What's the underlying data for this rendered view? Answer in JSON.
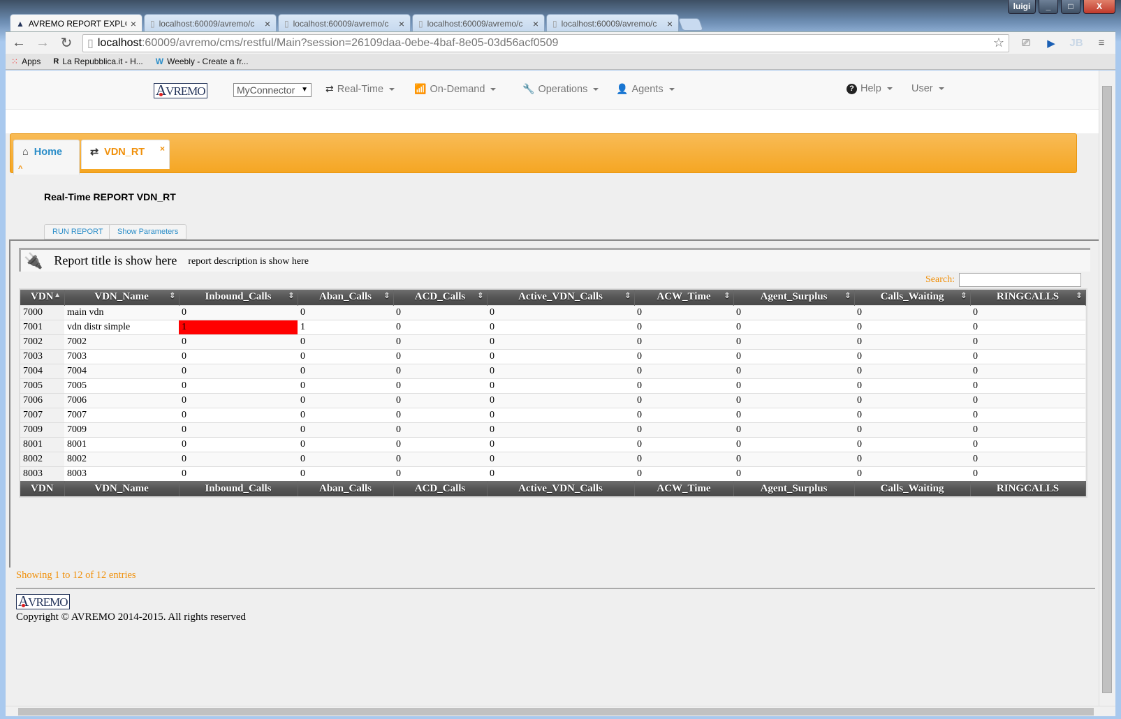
{
  "window": {
    "user": "luigi",
    "min": "_",
    "max": "□",
    "close": "X"
  },
  "browser_tabs": [
    {
      "title": "AVREMO REPORT EXPLORER",
      "active": true
    },
    {
      "title": "localhost:60009/avremo/c"
    },
    {
      "title": "localhost:60009/avremo/c"
    },
    {
      "title": "localhost:60009/avremo/c"
    },
    {
      "title": "localhost:60009/avremo/c"
    }
  ],
  "address": {
    "host": "localhost",
    "rest": ":60009/avremo/cms/restful/Main?session=26109daa-0ebe-4baf-8e05-03d56acf0509"
  },
  "bookmarks": [
    {
      "label": "Apps"
    },
    {
      "label": "La Repubblica.it - H..."
    },
    {
      "label": "Weebly - Create a fr..."
    }
  ],
  "navbar": {
    "logo": "AVREMO",
    "connector": "MyConnector",
    "menus": [
      {
        "label": "Real-Time",
        "icon": "refresh-icon"
      },
      {
        "label": "On-Demand",
        "icon": "chart-icon"
      },
      {
        "label": "Operations",
        "icon": "wrench-icon"
      },
      {
        "label": "Agents",
        "icon": "user-icon"
      }
    ],
    "help": "Help",
    "user": "User"
  },
  "app_tabs": [
    {
      "label": "Home",
      "icon": "home-icon"
    },
    {
      "label": "VDN_RT",
      "icon": "refresh-icon",
      "close": "×"
    }
  ],
  "report": {
    "heading": "Real-Time REPORT VDN_RT",
    "run_button": "RUN REPORT",
    "params_button": "Show Parameters",
    "title": "Report title is show here",
    "description": "report description is show here",
    "search_label": "Search:",
    "search_value": ""
  },
  "colors": {
    "accent": "#f5a623",
    "highlight": "#ff0000",
    "link": "#2a8dc8"
  },
  "table": {
    "columns": [
      "VDN",
      "VDN_Name",
      "Inbound_Calls",
      "Aban_Calls",
      "ACD_Calls",
      "Active_VDN_Calls",
      "ACW_Time",
      "Agent_Surplus",
      "Calls_Waiting",
      "RINGCALLS"
    ],
    "rows": [
      [
        "7000",
        "main vdn",
        "0",
        "0",
        "0",
        "0",
        "0",
        "0",
        "0",
        "0"
      ],
      [
        "7001",
        "vdn distr simple",
        "1",
        "1",
        "0",
        "0",
        "0",
        "0",
        "0",
        "0"
      ],
      [
        "7002",
        "7002",
        "0",
        "0",
        "0",
        "0",
        "0",
        "0",
        "0",
        "0"
      ],
      [
        "7003",
        "7003",
        "0",
        "0",
        "0",
        "0",
        "0",
        "0",
        "0",
        "0"
      ],
      [
        "7004",
        "7004",
        "0",
        "0",
        "0",
        "0",
        "0",
        "0",
        "0",
        "0"
      ],
      [
        "7005",
        "7005",
        "0",
        "0",
        "0",
        "0",
        "0",
        "0",
        "0",
        "0"
      ],
      [
        "7006",
        "7006",
        "0",
        "0",
        "0",
        "0",
        "0",
        "0",
        "0",
        "0"
      ],
      [
        "7007",
        "7007",
        "0",
        "0",
        "0",
        "0",
        "0",
        "0",
        "0",
        "0"
      ],
      [
        "7009",
        "7009",
        "0",
        "0",
        "0",
        "0",
        "0",
        "0",
        "0",
        "0"
      ],
      [
        "8001",
        "8001",
        "0",
        "0",
        "0",
        "0",
        "0",
        "0",
        "0",
        "0"
      ],
      [
        "8002",
        "8002",
        "0",
        "0",
        "0",
        "0",
        "0",
        "0",
        "0",
        "0"
      ],
      [
        "8003",
        "8003",
        "0",
        "0",
        "0",
        "0",
        "0",
        "0",
        "0",
        "0"
      ]
    ],
    "highlighted_cell": {
      "row": 1,
      "column": "Inbound_Calls"
    }
  },
  "footer": {
    "showing": "Showing 1 to 12 of 12 entries",
    "logo": "AVREMO",
    "copyright": "Copyright © AVREMO 2014-2015. All rights reserved"
  }
}
